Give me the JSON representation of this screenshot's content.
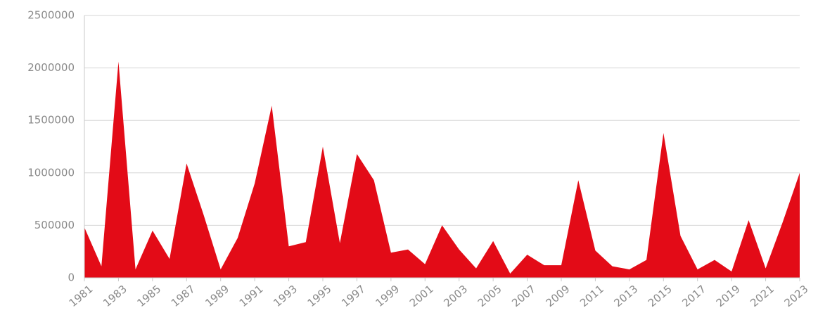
{
  "chart_data": {
    "type": "area",
    "color": "#e30b17",
    "grid": true,
    "x": [
      1981,
      1982,
      1983,
      1984,
      1985,
      1986,
      1987,
      1988,
      1989,
      1990,
      1991,
      1992,
      1993,
      1994,
      1995,
      1996,
      1997,
      1998,
      1999,
      2000,
      2001,
      2002,
      2003,
      2004,
      2005,
      2006,
      2007,
      2008,
      2009,
      2010,
      2011,
      2012,
      2013,
      2014,
      2015,
      2016,
      2017,
      2018,
      2019,
      2020,
      2021,
      2022,
      2023
    ],
    "values": [
      480000,
      110000,
      2060000,
      80000,
      450000,
      180000,
      1090000,
      600000,
      80000,
      380000,
      900000,
      1640000,
      300000,
      340000,
      1250000,
      330000,
      1180000,
      930000,
      240000,
      270000,
      130000,
      500000,
      270000,
      90000,
      350000,
      40000,
      220000,
      120000,
      120000,
      930000,
      260000,
      110000,
      80000,
      170000,
      1380000,
      400000,
      80000,
      170000,
      60000,
      550000,
      90000,
      530000,
      1000000
    ],
    "xlim": [
      1981,
      2023
    ],
    "xticks": [
      1981,
      1983,
      1985,
      1987,
      1989,
      1991,
      1993,
      1995,
      1997,
      1999,
      2001,
      2003,
      2005,
      2007,
      2009,
      2011,
      2013,
      2015,
      2017,
      2019,
      2021,
      2023
    ],
    "ylim": [
      0,
      2500000
    ],
    "yticks": [
      0,
      500000,
      1000000,
      1500000,
      2000000,
      2500000
    ]
  }
}
